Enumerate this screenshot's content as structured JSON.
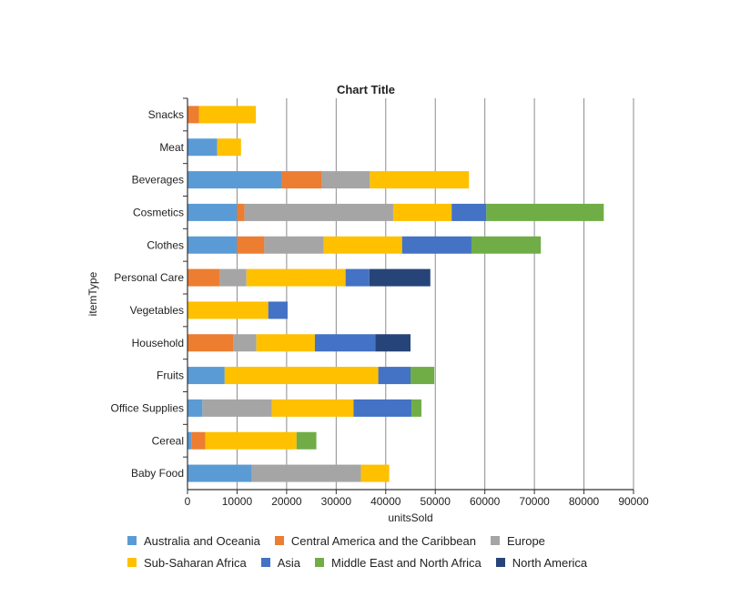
{
  "chart_data": {
    "type": "bar",
    "orientation": "horizontal",
    "stacked": true,
    "title": "Chart Title",
    "xlabel": "unitsSold",
    "ylabel": "itemType",
    "xlim": [
      0,
      90000
    ],
    "x_ticks": [
      "0",
      "10000",
      "20000",
      "30000",
      "40000",
      "50000",
      "60000",
      "70000",
      "80000",
      "90000"
    ],
    "grid": true,
    "legend_position": "bottom",
    "categories": [
      "Snacks",
      "Meat",
      "Beverages",
      "Cosmetics",
      "Clothes",
      "Personal Care",
      "Vegetables",
      "Household",
      "Fruits",
      "Office Supplies",
      "Cereal",
      "Baby Food"
    ],
    "series": [
      {
        "name": "Australia and Oceania",
        "color": "#5b9bd5",
        "values": [
          0,
          6000,
          19000,
          10000,
          10000,
          0,
          0,
          0,
          7500,
          3000,
          800,
          13000
        ]
      },
      {
        "name": "Central America and the Caribbean",
        "color": "#ed7d31",
        "values": [
          2300,
          0,
          8000,
          1500,
          5500,
          6500,
          0,
          9200,
          0,
          0,
          2800,
          0
        ]
      },
      {
        "name": "Europe",
        "color": "#a5a5a5",
        "values": [
          0,
          0,
          9800,
          30000,
          12000,
          5400,
          0,
          4700,
          0,
          14000,
          0,
          22000
        ]
      },
      {
        "name": "Sub-Saharan Africa",
        "color": "#ffc000",
        "values": [
          11500,
          4800,
          20000,
          11800,
          15800,
          20000,
          16300,
          11800,
          31000,
          16500,
          18400,
          5700
        ]
      },
      {
        "name": "Asia",
        "color": "#4472c4",
        "values": [
          0,
          0,
          0,
          7000,
          14000,
          4800,
          3900,
          12200,
          6500,
          11700,
          0,
          0
        ]
      },
      {
        "name": "Middle East and North Africa",
        "color": "#70ad47",
        "values": [
          0,
          0,
          0,
          23700,
          14000,
          0,
          0,
          0,
          4800,
          2000,
          4000,
          0
        ]
      },
      {
        "name": "North America",
        "color": "#264478",
        "values": [
          0,
          0,
          0,
          0,
          0,
          12300,
          0,
          7100,
          0,
          0,
          0,
          0
        ]
      }
    ]
  }
}
